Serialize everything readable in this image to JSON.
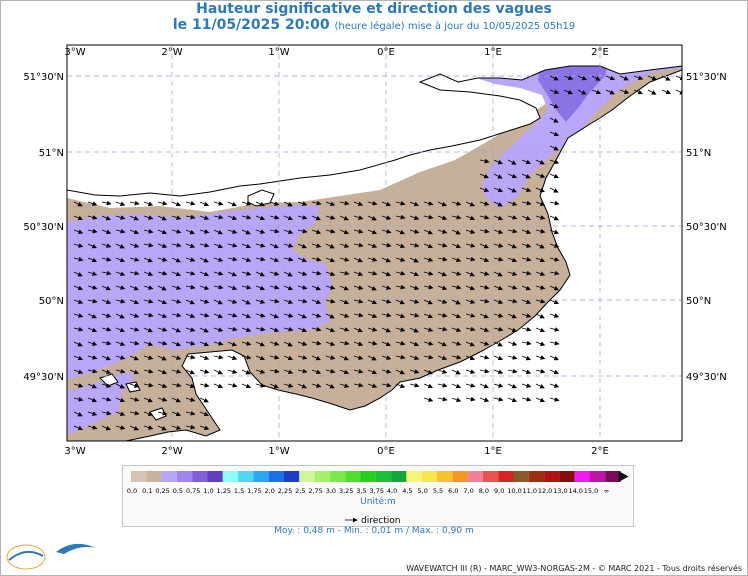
{
  "header": {
    "title": "Hauteur significative et direction des vagues",
    "date_line": "le 11/05/2025 20:00",
    "date_note": "(heure légale) mise à jour du 10/05/2025 05h19"
  },
  "map": {
    "lon_labels": [
      "3°W",
      "2°W",
      "1°W",
      "0°E",
      "1°E",
      "2°E"
    ],
    "lat_labels": [
      "51°30'N",
      "51°N",
      "50°30'N",
      "50°N",
      "49°30'N"
    ],
    "colors": {
      "land": "#c6b09a",
      "wave_low": "#b9a6f7",
      "wave_mid": "#8b73e6",
      "grid": "#9aa4d8"
    },
    "arrow_direction_note": "arrows toward east / south-east"
  },
  "legend": {
    "values": [
      "0,0",
      "0,1",
      "0,25",
      "0,5",
      "0,75",
      "1,0",
      "1,25",
      "1,5",
      "1,75",
      "2,0",
      "2,25",
      "2,5",
      "2,75",
      "3,0",
      "3,25",
      "3,5",
      "3,75",
      "4,0",
      "4,5",
      "5,0",
      "5,5",
      "6,0",
      "7,0",
      "8,0",
      "9,0",
      "10,0",
      "11,0",
      "12,0",
      "13,0",
      "14,0",
      "15,0",
      "∞"
    ],
    "colors": [
      "#d7c4b0",
      "#c9b39d",
      "#b7a5f5",
      "#9f86ec",
      "#7f5fd9",
      "#5f3fc0",
      "#8ffcfc",
      "#4cd8f0",
      "#2aa8f4",
      "#1d6ee8",
      "#1f3cc6",
      "#d0f59a",
      "#a8f06a",
      "#7be84c",
      "#4fe02f",
      "#23d11d",
      "#1bbf3a",
      "#12a63c",
      "#f5f578",
      "#f7e74a",
      "#f6c52d",
      "#f29a1e",
      "#f47f9a",
      "#ee5050",
      "#d62424",
      "#8b5a2b",
      "#9a2f12",
      "#b31212",
      "#8a0b0b",
      "#f416f4",
      "#c012a6",
      "#7a0a5a"
    ],
    "unit": "Unité:m",
    "direction_label": "direction"
  },
  "stats": "Moy. : 0,48 m   -   Min. : 0,01 m / Max. : 0,90 m",
  "footer": "WAVEWATCH III (R) - MARC_WW3-NORGAS-2M - © MARC 2021 - Tous droits réservés",
  "logos": {
    "lops": "LOPS",
    "ifremer": "Ifremer"
  }
}
